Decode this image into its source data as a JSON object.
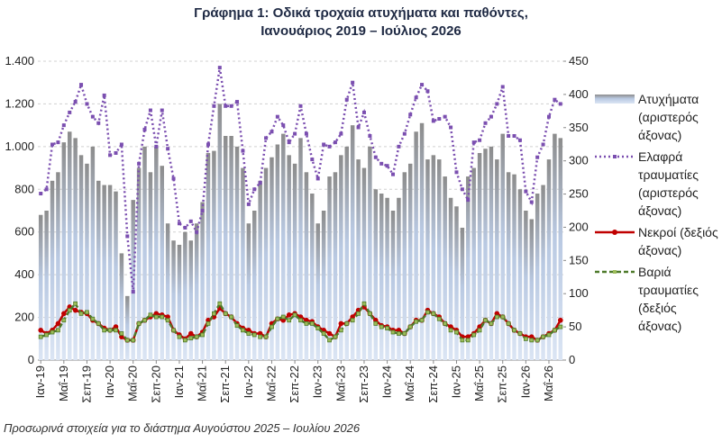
{
  "chart_data": {
    "type": "bar",
    "title": "Γράφημα 1: Οδικά τροχαία ατυχήματα και παθόντες,",
    "subtitle": "Ιανουάριος 2019 – Ιούλιος 2026",
    "footnote": "Προσωρινά στοιχεία για το διάστημα Αυγούστου 2025 – Ιουλίου 2026",
    "categories": [
      "Ιαν-19",
      null,
      null,
      null,
      "Μαΐ-19",
      null,
      null,
      null,
      "Σεπ-19",
      null,
      null,
      null,
      "Ιαν-20",
      null,
      null,
      null,
      "Μαΐ-20",
      null,
      null,
      null,
      "Σεπ-20",
      null,
      null,
      null,
      "Ιαν-21",
      null,
      null,
      null,
      "Μαΐ-21",
      null,
      null,
      null,
      "Σεπ-21",
      null,
      null,
      null,
      "Ιαν-22",
      null,
      null,
      null,
      "Μαΐ-22",
      null,
      null,
      null,
      "Σεπ-22",
      null,
      null,
      null,
      "Ιαν-23",
      null,
      null,
      null,
      "Μαΐ-23",
      null,
      null,
      null,
      "Σεπ-23",
      null,
      null,
      null,
      "Ιαν-24",
      null,
      null,
      null,
      "Μαΐ-24",
      null,
      null,
      null,
      "Σεπ-24",
      null,
      null,
      null,
      "Ιαν-25",
      null,
      null,
      null,
      "Μαΐ-25",
      null,
      null,
      null,
      "Σεπ-25",
      null,
      null,
      null,
      "Ιαν-26",
      null,
      null,
      null,
      "Μαΐ-26",
      null,
      null
    ],
    "ylim": [
      0,
      1400
    ],
    "yticks": [
      0,
      200,
      400,
      600,
      800,
      {
        "value": 1000,
        "label": "1.000"
      },
      {
        "value": 1200,
        "label": "1.200"
      },
      {
        "value": 1400,
        "label": "1.400"
      }
    ],
    "y2lim": [
      0,
      450
    ],
    "y2ticks": [
      0,
      50,
      100,
      150,
      200,
      250,
      300,
      350,
      400,
      450
    ],
    "grid": true,
    "series": [
      {
        "name": "Ατυχήματα (αριστερός άξονας)",
        "type": "bar",
        "color": "#8c8c8c",
        "values": [
          680,
          700,
          840,
          880,
          1020,
          1070,
          1040,
          960,
          920,
          1000,
          840,
          820,
          820,
          790,
          500,
          300,
          750,
          900,
          1000,
          880,
          1000,
          910,
          640,
          560,
          540,
          600,
          560,
          640,
          740,
          970,
          980,
          1200,
          1050,
          1050,
          1000,
          900,
          640,
          700,
          840,
          900,
          950,
          1010,
          1060,
          960,
          920,
          1040,
          880,
          780,
          640,
          700,
          860,
          880,
          960,
          1000,
          1100,
          940,
          900,
          1000,
          800,
          780,
          760,
          700,
          760,
          880,
          920,
          1070,
          1110,
          940,
          960,
          940,
          860,
          760,
          720,
          620,
          860,
          900,
          970,
          990,
          1000,
          940,
          1060,
          880,
          870,
          800,
          700,
          660,
          780,
          820,
          940,
          1060,
          1040
        ]
      },
      {
        "name": "Ελαφρά τραυματίες (αριστερός άξονας)",
        "type": "line",
        "style": "dotted",
        "color": "#7b4fb0",
        "values": [
          780,
          800,
          1010,
          1020,
          1100,
          1160,
          1210,
          1290,
          1200,
          1140,
          1110,
          1240,
          960,
          970,
          1010,
          580,
          320,
          920,
          1080,
          1170,
          1000,
          1170,
          990,
          850,
          640,
          620,
          650,
          600,
          700,
          1010,
          1190,
          1370,
          1190,
          1190,
          1210,
          980,
          730,
          800,
          830,
          1040,
          1070,
          1140,
          1100,
          1020,
          1060,
          1190,
          1060,
          940,
          850,
          1010,
          1000,
          1020,
          1060,
          1220,
          1300,
          1090,
          1160,
          1050,
          950,
          920,
          910,
          870,
          1000,
          1060,
          1150,
          1230,
          1290,
          1260,
          1120,
          1130,
          1140,
          1090,
          880,
          800,
          750,
          1020,
          1030,
          1110,
          1140,
          1200,
          1280,
          1050,
          1050,
          1030,
          790,
          740,
          950,
          1010,
          1140,
          1220,
          1200
        ]
      },
      {
        "name": "Νεκροί (δεξιός άξονας)",
        "type": "line",
        "style": "solid",
        "axis": "y2",
        "color": "#c00000",
        "values": [
          45,
          40,
          45,
          55,
          70,
          80,
          75,
          72,
          70,
          60,
          55,
          48,
          45,
          50,
          35,
          30,
          30,
          55,
          60,
          65,
          70,
          68,
          65,
          45,
          38,
          32,
          40,
          35,
          42,
          60,
          65,
          78,
          70,
          65,
          55,
          48,
          45,
          40,
          40,
          35,
          55,
          62,
          60,
          68,
          70,
          65,
          60,
          58,
          50,
          45,
          40,
          35,
          55,
          55,
          65,
          75,
          80,
          70,
          60,
          52,
          50,
          45,
          45,
          40,
          50,
          60,
          60,
          75,
          70,
          65,
          55,
          50,
          45,
          35,
          35,
          40,
          50,
          60,
          55,
          70,
          65,
          55,
          45,
          40,
          35,
          35,
          30,
          35,
          40,
          45,
          60
        ]
      },
      {
        "name": "Βαριά τραυματίες (δεξιός άξονας)",
        "type": "line",
        "style": "dashed",
        "axis": "y2",
        "color": "#4e7a2a",
        "values": [
          35,
          38,
          42,
          45,
          60,
          75,
          85,
          70,
          72,
          62,
          55,
          45,
          45,
          45,
          40,
          30,
          30,
          55,
          60,
          68,
          65,
          65,
          60,
          45,
          35,
          30,
          33,
          35,
          38,
          55,
          70,
          85,
          70,
          65,
          52,
          45,
          40,
          38,
          35,
          35,
          50,
          62,
          65,
          60,
          68,
          60,
          55,
          55,
          48,
          40,
          30,
          35,
          45,
          55,
          60,
          70,
          85,
          70,
          55,
          50,
          48,
          42,
          40,
          40,
          50,
          58,
          60,
          72,
          70,
          62,
          55,
          45,
          42,
          30,
          30,
          38,
          45,
          60,
          55,
          65,
          65,
          55,
          45,
          40,
          32,
          30,
          30,
          35,
          38,
          45,
          50
        ]
      }
    ]
  }
}
